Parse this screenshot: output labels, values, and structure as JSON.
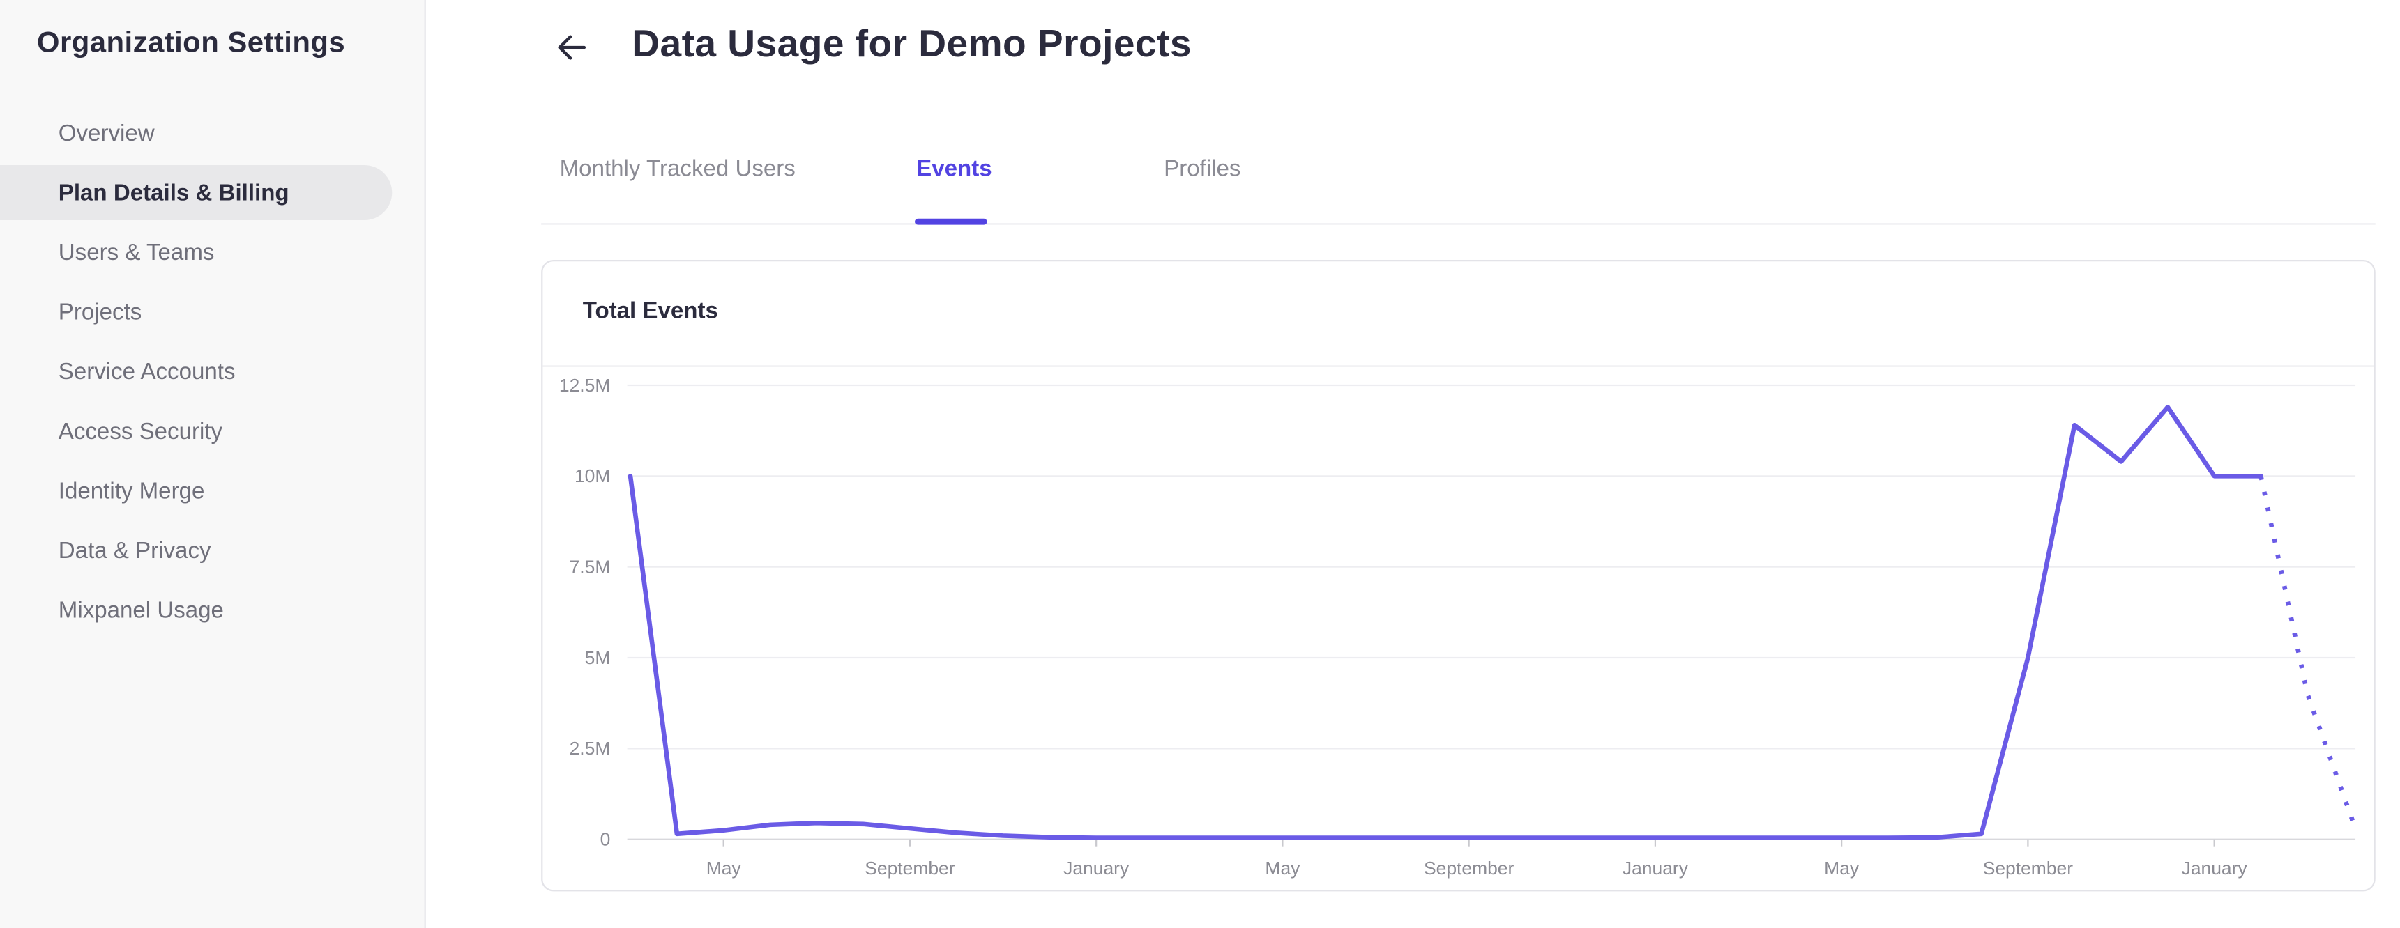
{
  "sidebar": {
    "title": "Organization Settings",
    "items": [
      {
        "label": "Overview",
        "active": false
      },
      {
        "label": "Plan Details & Billing",
        "active": true
      },
      {
        "label": "Users & Teams",
        "active": false
      },
      {
        "label": "Projects",
        "active": false
      },
      {
        "label": "Service Accounts",
        "active": false
      },
      {
        "label": "Access Security",
        "active": false
      },
      {
        "label": "Identity Merge",
        "active": false
      },
      {
        "label": "Data & Privacy",
        "active": false
      },
      {
        "label": "Mixpanel Usage",
        "active": false
      }
    ]
  },
  "header": {
    "title": "Data Usage for Demo Projects"
  },
  "tabs": [
    {
      "label": "Monthly Tracked Users",
      "active": false,
      "x": 364
    },
    {
      "label": "Events",
      "active": true,
      "x": 596
    },
    {
      "label": "Profiles",
      "active": false,
      "x": 757
    }
  ],
  "card": {
    "title": "Total Events"
  },
  "colors": {
    "accent": "#5243e2",
    "line": "#6a5be6",
    "grid": "#ededf1",
    "zero_axis": "#d8d8dc",
    "tick": "#c9c9ce",
    "axis_text": "#8b8b93"
  },
  "chart_data": {
    "type": "line",
    "title": "Total Events",
    "values_unit": "millions of events",
    "ylim": [
      0,
      12.5
    ],
    "grid": true,
    "y_ticks": [
      {
        "value": 0,
        "label": "0"
      },
      {
        "value": 2.5,
        "label": "2.5M"
      },
      {
        "value": 5,
        "label": "5M"
      },
      {
        "value": 7.5,
        "label": "7.5M"
      },
      {
        "value": 10,
        "label": "10M"
      },
      {
        "value": 12.5,
        "label": "12.5M"
      }
    ],
    "x_ticks": [
      {
        "index": 2,
        "label": "May"
      },
      {
        "index": 6,
        "label": "September"
      },
      {
        "index": 10,
        "label": "January"
      },
      {
        "index": 14,
        "label": "May"
      },
      {
        "index": 18,
        "label": "September"
      },
      {
        "index": 22,
        "label": "January"
      },
      {
        "index": 26,
        "label": "May"
      },
      {
        "index": 30,
        "label": "September"
      },
      {
        "index": 34,
        "label": "January"
      }
    ],
    "series": [
      {
        "name": "Total Events",
        "values": [
          10,
          0.15,
          0.25,
          0.4,
          0.45,
          0.42,
          0.3,
          0.18,
          0.1,
          0.06,
          0.04,
          0.04,
          0.04,
          0.04,
          0.04,
          0.04,
          0.04,
          0.04,
          0.04,
          0.04,
          0.04,
          0.04,
          0.04,
          0.04,
          0.04,
          0.04,
          0.04,
          0.04,
          0.05,
          0.15,
          5.0,
          11.4,
          10.4,
          11.9,
          10.0,
          10.0,
          4.0,
          0.4
        ],
        "dotted_from_index": 35
      }
    ]
  }
}
